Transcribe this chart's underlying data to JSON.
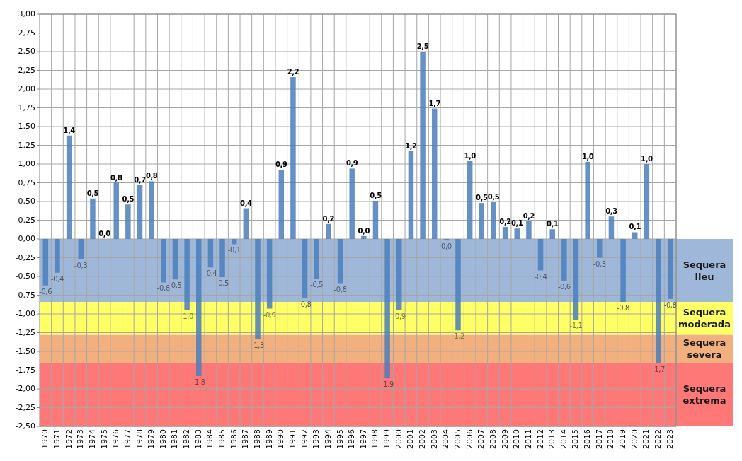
{
  "chart_data": {
    "type": "bar",
    "categories": [
      "1970",
      "1971",
      "1972",
      "1973",
      "1974",
      "1975",
      "1976",
      "1977",
      "1978",
      "1979",
      "1980",
      "1981",
      "1982",
      "1983",
      "1984",
      "1985",
      "1986",
      "1987",
      "1988",
      "1989",
      "1990",
      "1991",
      "1992",
      "1993",
      "1994",
      "1995",
      "1996",
      "1997",
      "1998",
      "1999",
      "2000",
      "2001",
      "2002",
      "2003",
      "2004",
      "2005",
      "2006",
      "2007",
      "2008",
      "2009",
      "2010",
      "2011",
      "2012",
      "2013",
      "2014",
      "2015",
      "2016",
      "2017",
      "2018",
      "2019",
      "2020",
      "2021",
      "2022",
      "2023"
    ],
    "values": [
      -0.62,
      -0.45,
      1.38,
      -0.27,
      0.54,
      0.0,
      0.75,
      0.46,
      0.72,
      0.77,
      -0.58,
      -0.54,
      -0.95,
      -1.83,
      -0.38,
      -0.51,
      -0.07,
      0.41,
      -1.34,
      -0.93,
      0.92,
      2.16,
      -0.79,
      -0.53,
      0.2,
      -0.59,
      0.94,
      0.04,
      0.51,
      -1.86,
      -0.95,
      1.17,
      2.5,
      1.74,
      -0.02,
      -1.22,
      1.04,
      0.48,
      0.49,
      0.16,
      0.14,
      0.24,
      -0.42,
      0.13,
      -0.56,
      -1.08,
      1.03,
      -0.25,
      0.3,
      -0.84,
      0.09,
      1.0,
      -1.66,
      -0.8
    ],
    "value_labels": [
      "-0,6",
      "-0,4",
      "1,4",
      "-0,3",
      "0,5",
      "0,0",
      "0,8",
      "0,5",
      "0,7",
      "0,8",
      "-0,6",
      "-0,5",
      "-1,0",
      "-1,8",
      "-0,4",
      "-0,5",
      "-0,1",
      "0,4",
      "-1,3",
      "-0,9",
      "0,9",
      "2,2",
      "-0,8",
      "-0,5",
      "0,2",
      "-0,6",
      "0,9",
      "0,0",
      "0,5",
      "-1,9",
      "-0,9",
      "1,2",
      "2,5",
      "1,7",
      "0,0",
      "-1,2",
      "1,0",
      "0,5",
      "0,5",
      "0,2",
      "0,1",
      "0,2",
      "-0,4",
      "0,1",
      "-0,6",
      "-1,1",
      "1,0",
      "-0,3",
      "0,3",
      "-0,8",
      "0,1",
      "1,0",
      "-1,7",
      "-0,8"
    ],
    "color": "#4a7ebb",
    "ylim": [
      -2.5,
      3
    ],
    "yticks": [
      {
        "value": -2.5,
        "label": "-2,50"
      },
      {
        "value": -2.25,
        "label": "-2,25"
      },
      {
        "value": -2,
        "label": "-2,00"
      },
      {
        "value": -1.75,
        "label": "-1,75"
      },
      {
        "value": -1.5,
        "label": "-1,50"
      },
      {
        "value": -1.25,
        "label": "-1,25"
      },
      {
        "value": -1,
        "label": "-1,00"
      },
      {
        "value": -0.75,
        "label": "-0,75"
      },
      {
        "value": -0.5,
        "label": "-0,50"
      },
      {
        "value": -0.25,
        "label": "-0,25"
      },
      {
        "value": 0,
        "label": "0,00"
      },
      {
        "value": 0.25,
        "label": "0,25"
      },
      {
        "value": 0.5,
        "label": "0,50"
      },
      {
        "value": 0.75,
        "label": "0,75"
      },
      {
        "value": 1,
        "label": "1,00"
      },
      {
        "value": 1.25,
        "label": "1,25"
      },
      {
        "value": 1.5,
        "label": "1,50"
      },
      {
        "value": 1.75,
        "label": "1,75"
      },
      {
        "value": 2,
        "label": "2,00"
      },
      {
        "value": 2.25,
        "label": "2,25"
      },
      {
        "value": 2.5,
        "label": "2,50"
      },
      {
        "value": 2.75,
        "label": "2,75"
      },
      {
        "value": 3,
        "label": "3,00"
      }
    ],
    "grid": true,
    "bands": [
      {
        "axis": "y",
        "from": 0,
        "to": -0.84,
        "label": "Sequera lleu",
        "color": "#9fb8da"
      },
      {
        "axis": "y",
        "from": -0.84,
        "to": -1.28,
        "label": "Sequera moderada",
        "color": "#ffff66"
      },
      {
        "axis": "y",
        "from": -1.28,
        "to": -1.65,
        "label": "Sequera severa",
        "color": "#f2b07f"
      },
      {
        "axis": "y",
        "from": -1.65,
        "to": -2.5,
        "label": "Sequera extrema",
        "color": "#ff7878"
      }
    ]
  }
}
